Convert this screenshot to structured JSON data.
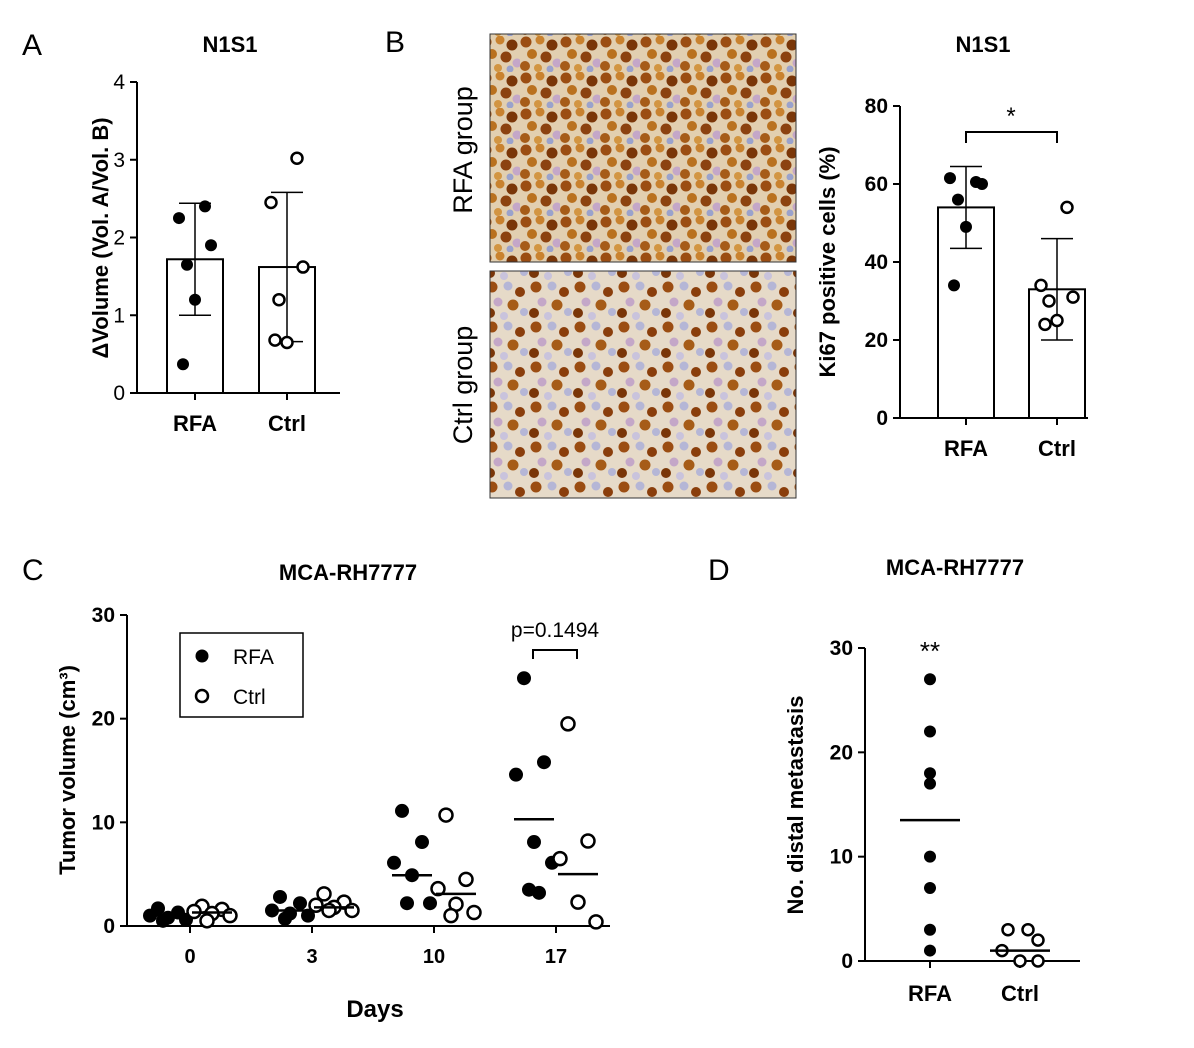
{
  "panels": {
    "A": {
      "letter": "A"
    },
    "B": {
      "letter": "B",
      "image_labels": [
        "RFA group",
        "Ctrl group"
      ]
    },
    "C": {
      "letter": "C"
    },
    "D": {
      "letter": "D"
    }
  },
  "chart_data": [
    {
      "id": "A",
      "type": "bar",
      "title": "N1S1",
      "ylabel": "ΔVolume (Vol. A/Vol. B)",
      "xlabel": "",
      "ylim": [
        0,
        4
      ],
      "yticks": [
        "0",
        "1",
        "2",
        "3",
        "4"
      ],
      "categories": [
        "RFA",
        "Ctrl"
      ],
      "means": [
        1.72,
        1.62
      ],
      "sd": [
        0.72,
        0.96
      ],
      "points": [
        [
          2.4,
          2.25,
          1.9,
          1.65,
          1.2,
          0.37
        ],
        [
          3.02,
          2.45,
          1.62,
          1.2,
          0.65,
          0.68
        ]
      ],
      "marker_fill": [
        "filled",
        "open"
      ]
    },
    {
      "id": "B",
      "type": "bar",
      "title": "N1S1",
      "ylabel": "Ki67 positive cells (%)",
      "xlabel": "",
      "ylim": [
        0,
        80
      ],
      "yticks": [
        "0",
        "20",
        "40",
        "60",
        "80"
      ],
      "categories": [
        "RFA",
        "Ctrl"
      ],
      "means": [
        54,
        33
      ],
      "sd": [
        10.5,
        13
      ],
      "points": [
        [
          60.5,
          61.5,
          60,
          56,
          49,
          34
        ],
        [
          54,
          34,
          31,
          30,
          25,
          24
        ]
      ],
      "marker_fill": [
        "filled",
        "open"
      ],
      "annotation": "*"
    },
    {
      "id": "C",
      "type": "scatter",
      "title": "MCA-RH7777",
      "ylabel": "Tumor volume (cm³)",
      "xlabel": "Days",
      "ylim": [
        0,
        30
      ],
      "yticks": [
        "0",
        "10",
        "20",
        "30"
      ],
      "categories": [
        "0",
        "3",
        "10",
        "17"
      ],
      "series": [
        {
          "name": "RFA",
          "fill": "filled",
          "points": [
            [
              1.7,
              1.3,
              1.0,
              0.8,
              0.6,
              0.5
            ],
            [
              2.8,
              2.2,
              1.5,
              1.2,
              1.0,
              0.7
            ],
            [
              11.1,
              8.1,
              6.1,
              4.9,
              2.2,
              2.2
            ],
            [
              23.9,
              15.8,
              14.6,
              8.1,
              6.1,
              3.5,
              3.2
            ]
          ],
          "means": [
            1.0,
            1.5,
            4.9,
            10.3
          ]
        },
        {
          "name": "Ctrl",
          "fill": "open",
          "points": [
            [
              1.9,
              1.6,
              1.4,
              1.2,
              1.0,
              0.5
            ],
            [
              3.1,
              2.3,
              2.0,
              1.8,
              1.5,
              1.5
            ],
            [
              10.7,
              4.5,
              3.6,
              2.1,
              1.3,
              1.0
            ],
            [
              19.5,
              8.2,
              6.5,
              2.3,
              0.4
            ]
          ],
          "means": [
            1.3,
            1.8,
            3.1,
            5.0
          ]
        }
      ],
      "legend": [
        "RFA",
        "Ctrl"
      ],
      "legend_position": "top-left",
      "annotation": "p=0.1494"
    },
    {
      "id": "D",
      "type": "scatter",
      "title": "MCA-RH7777",
      "ylabel": "No. distal metastasis",
      "xlabel": "",
      "ylim": [
        0,
        30
      ],
      "yticks": [
        "0",
        "10",
        "20",
        "30"
      ],
      "categories": [
        "RFA",
        "Ctrl"
      ],
      "points": [
        [
          27,
          22,
          18,
          17,
          10,
          7,
          3,
          1
        ],
        [
          3,
          3,
          2,
          1,
          0,
          0
        ]
      ],
      "means": [
        13.5,
        1
      ],
      "marker_fill": [
        "filled",
        "open"
      ],
      "annotation": "**"
    }
  ]
}
